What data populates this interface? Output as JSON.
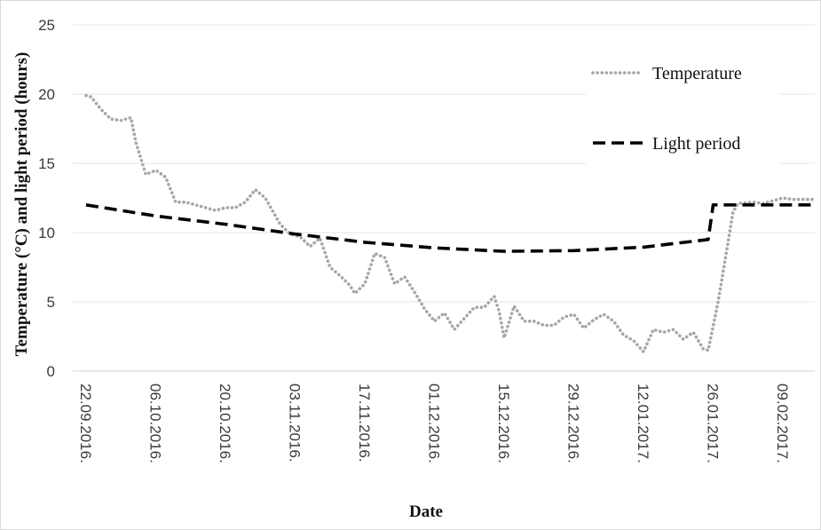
{
  "chart_data": {
    "type": "line",
    "xlabel": "Date",
    "ylabel": "Temperature (°C) and light period (hours)",
    "ylim": [
      0,
      25
    ],
    "y_ticks": [
      0,
      5,
      10,
      15,
      20,
      25
    ],
    "x_tick_labels": [
      "22.09.2016.",
      "06.10.2016.",
      "20.10.2016.",
      "03.11.2016.",
      "17.11.2016.",
      "01.12.2016.",
      "15.12.2016.",
      "29.12.2016.",
      "12.01.2017.",
      "26.01.2017.",
      "09.02.2017."
    ],
    "x_start": "22.09.2016.",
    "x_end": "15.02.2017.",
    "grid": true,
    "legend_position": "right",
    "series": [
      {
        "name": "Temperature",
        "style": "dotted",
        "color": "#a6a6a6",
        "points": [
          [
            "22.09.2016.",
            19.9
          ],
          [
            "23.09.2016.",
            19.8
          ],
          [
            "25.09.2016.",
            18.9
          ],
          [
            "27.09.2016.",
            18.2
          ],
          [
            "29.09.2016.",
            18.1
          ],
          [
            "01.10.2016.",
            18.3
          ],
          [
            "02.10.2016.",
            16.5
          ],
          [
            "04.10.2016.",
            14.2
          ],
          [
            "06.10.2016.",
            14.5
          ],
          [
            "08.10.2016.",
            14.0
          ],
          [
            "10.10.2016.",
            12.2
          ],
          [
            "12.10.2016.",
            12.2
          ],
          [
            "14.10.2016.",
            12.0
          ],
          [
            "16.10.2016.",
            11.8
          ],
          [
            "18.10.2016.",
            11.6
          ],
          [
            "20.10.2016.",
            11.8
          ],
          [
            "22.10.2016.",
            11.8
          ],
          [
            "24.10.2016.",
            12.2
          ],
          [
            "26.10.2016.",
            13.1
          ],
          [
            "28.10.2016.",
            12.5
          ],
          [
            "31.10.2016.",
            10.6
          ],
          [
            "02.11.2016.",
            9.9
          ],
          [
            "04.11.2016.",
            9.7
          ],
          [
            "06.11.2016.",
            9.0
          ],
          [
            "08.11.2016.",
            9.6
          ],
          [
            "10.11.2016.",
            7.5
          ],
          [
            "12.11.2016.",
            6.9
          ],
          [
            "14.11.2016.",
            6.2
          ],
          [
            "15.11.2016.",
            5.6
          ],
          [
            "17.11.2016.",
            6.3
          ],
          [
            "19.11.2016.",
            8.5
          ],
          [
            "21.11.2016.",
            8.2
          ],
          [
            "23.11.2016.",
            6.3
          ],
          [
            "25.11.2016.",
            6.8
          ],
          [
            "27.11.2016.",
            5.7
          ],
          [
            "29.11.2016.",
            4.5
          ],
          [
            "01.12.2016.",
            3.6
          ],
          [
            "03.12.2016.",
            4.2
          ],
          [
            "05.12.2016.",
            3.0
          ],
          [
            "07.12.2016.",
            3.8
          ],
          [
            "09.12.2016.",
            4.6
          ],
          [
            "11.12.2016.",
            4.6
          ],
          [
            "13.12.2016.",
            5.4
          ],
          [
            "14.12.2016.",
            4.3
          ],
          [
            "15.12.2016.",
            2.4
          ],
          [
            "17.12.2016.",
            4.7
          ],
          [
            "19.12.2016.",
            3.6
          ],
          [
            "21.12.2016.",
            3.6
          ],
          [
            "23.12.2016.",
            3.3
          ],
          [
            "25.12.2016.",
            3.3
          ],
          [
            "27.12.2016.",
            3.9
          ],
          [
            "29.12.2016.",
            4.1
          ],
          [
            "31.12.2016.",
            3.1
          ],
          [
            "02.01.2017.",
            3.7
          ],
          [
            "04.01.2017.",
            4.1
          ],
          [
            "06.01.2017.",
            3.6
          ],
          [
            "08.01.2017.",
            2.6
          ],
          [
            "10.01.2017.",
            2.2
          ],
          [
            "12.01.2017.",
            1.4
          ],
          [
            "14.01.2017.",
            3.0
          ],
          [
            "16.01.2017.",
            2.8
          ],
          [
            "18.01.2017.",
            3.0
          ],
          [
            "20.01.2017.",
            2.3
          ],
          [
            "22.01.2017.",
            2.8
          ],
          [
            "24.01.2017.",
            1.6
          ],
          [
            "25.01.2017.",
            1.5
          ],
          [
            "27.01.2017.",
            5.0
          ],
          [
            "29.01.2017.",
            9.3
          ],
          [
            "30.01.2017.",
            11.5
          ],
          [
            "31.01.2017.",
            12.1
          ],
          [
            "03.02.2017.",
            12.2
          ],
          [
            "05.02.2017.",
            12.1
          ],
          [
            "07.02.2017.",
            12.3
          ],
          [
            "09.02.2017.",
            12.5
          ],
          [
            "11.02.2017.",
            12.4
          ],
          [
            "13.02.2017.",
            12.4
          ],
          [
            "15.02.2017.",
            12.4
          ]
        ]
      },
      {
        "name": "Light period",
        "style": "dashed",
        "color": "#000000",
        "points": [
          [
            "22.09.2016.",
            12.0
          ],
          [
            "06.10.2016.",
            11.2
          ],
          [
            "20.10.2016.",
            10.6
          ],
          [
            "03.11.2016.",
            9.9
          ],
          [
            "17.11.2016.",
            9.3
          ],
          [
            "01.12.2016.",
            8.9
          ],
          [
            "15.12.2016.",
            8.65
          ],
          [
            "29.12.2016.",
            8.7
          ],
          [
            "12.01.2017.",
            8.95
          ],
          [
            "25.01.2017.",
            9.5
          ],
          [
            "26.01.2017.",
            12.0
          ],
          [
            "09.02.2017.",
            12.0
          ],
          [
            "15.02.2017.",
            12.0
          ]
        ]
      }
    ]
  }
}
